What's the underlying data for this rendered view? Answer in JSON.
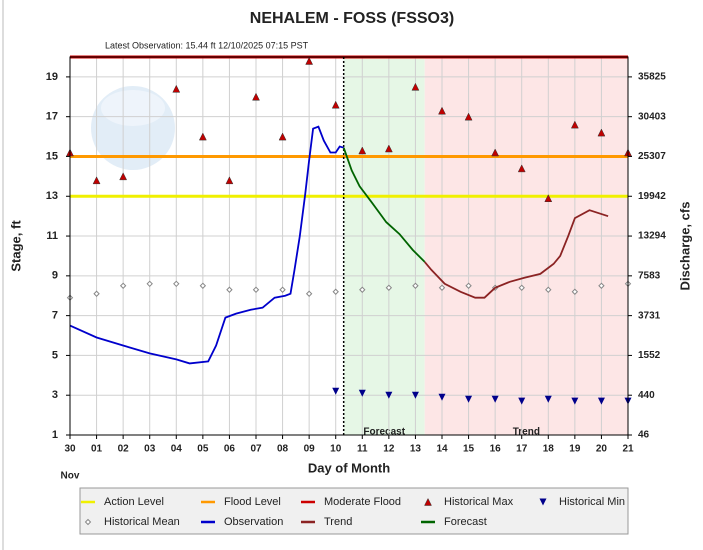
{
  "chart_data": {
    "type": "hydrograph",
    "title": "NEHALEM - FOSS  (FSSO3)",
    "subtitle": "Latest Observation: 15.44 ft 12/10/2025 07:15 PST",
    "x_label": "Day of Month",
    "x_sublabel": "Nov",
    "y_label": "Stage, ft",
    "y2_label": "Discharge, cfs",
    "xlim": [
      0,
      21
    ],
    "xticks": [
      {
        "value": 0,
        "label": "30"
      },
      {
        "value": 1,
        "label": "01"
      },
      {
        "value": 2,
        "label": "02"
      },
      {
        "value": 3,
        "label": "03"
      },
      {
        "value": 4,
        "label": "04"
      },
      {
        "value": 5,
        "label": "05"
      },
      {
        "value": 6,
        "label": "06"
      },
      {
        "value": 7,
        "label": "07"
      },
      {
        "value": 8,
        "label": "08"
      },
      {
        "value": 9,
        "label": "09"
      },
      10,
      11,
      12,
      13,
      14,
      15,
      16,
      17,
      18,
      19,
      20,
      21
    ],
    "ylim": [
      1,
      20
    ],
    "yticks": [
      1,
      3,
      5,
      7,
      9,
      11,
      13,
      15,
      17,
      19
    ],
    "y2ticks": [
      46,
      440,
      1552,
      3731,
      7583,
      13294,
      19942,
      25307,
      30403,
      35825
    ],
    "grid": true,
    "observation_time": 10.3,
    "regions": [
      {
        "label": "Forecast",
        "range": [
          10.3,
          13.35
        ],
        "color": "#e6f7e6"
      },
      {
        "label": "Trend",
        "range": [
          13.35,
          21
        ],
        "color": "#fde6e6"
      }
    ],
    "thresholds": [
      {
        "name": "Action Level",
        "value": 13,
        "color": "#f0f000"
      },
      {
        "name": "Flood Level",
        "value": 15,
        "color": "#ff9900"
      },
      {
        "name": "Moderate Flood",
        "value": 20,
        "color": "#cc0000"
      }
    ],
    "series": [
      {
        "name": "Historical Max",
        "marker": "triangle-up",
        "color": "#c00000",
        "x": [
          0,
          1,
          2,
          4,
          5,
          6,
          7,
          8,
          9,
          10,
          11,
          12,
          13,
          14,
          15,
          16,
          17,
          18,
          19,
          20,
          21
        ],
        "values": [
          15.2,
          13.8,
          14.0,
          18.4,
          16.0,
          13.8,
          18.0,
          16.0,
          19.8,
          17.6,
          15.3,
          15.4,
          18.5,
          17.3,
          17.0,
          15.2,
          14.4,
          12.9,
          16.6,
          16.2,
          15.2
        ]
      },
      {
        "name": "Historical Min",
        "marker": "triangle-down",
        "color": "#00008b",
        "x": [
          10,
          11,
          12,
          13,
          14,
          15,
          16,
          17,
          18,
          19,
          20,
          21
        ],
        "values": [
          3.2,
          3.1,
          3.0,
          3.0,
          2.9,
          2.8,
          2.8,
          2.7,
          2.8,
          2.7,
          2.7,
          2.7
        ]
      },
      {
        "name": "Historical Mean",
        "marker": "diamond",
        "color": "#888888",
        "x": [
          0,
          1,
          2,
          3,
          4,
          5,
          6,
          7,
          8,
          9,
          10,
          11,
          12,
          13,
          14,
          15,
          16,
          17,
          18,
          19,
          20,
          21
        ],
        "values": [
          7.9,
          8.1,
          8.5,
          8.6,
          8.6,
          8.5,
          8.3,
          8.3,
          8.3,
          8.1,
          8.2,
          8.3,
          8.4,
          8.5,
          8.4,
          8.5,
          8.4,
          8.4,
          8.3,
          8.2,
          8.5,
          8.6
        ]
      },
      {
        "name": "Observation",
        "marker": "line",
        "color": "#0000cc",
        "x": [
          0,
          1,
          2,
          3,
          4,
          4.5,
          5.2,
          5.5,
          5.85,
          6.25,
          6.8,
          7.25,
          7.7,
          8.1,
          8.3,
          8.45,
          8.65,
          8.85,
          9.0,
          9.15,
          9.35,
          9.55,
          9.8,
          10.0,
          10.15,
          10.3
        ],
        "values": [
          6.5,
          5.9,
          5.5,
          5.1,
          4.8,
          4.6,
          4.7,
          5.5,
          6.9,
          7.1,
          7.3,
          7.4,
          7.9,
          8.0,
          8.1,
          9.3,
          11.0,
          13.1,
          14.8,
          16.4,
          16.5,
          15.8,
          15.2,
          15.2,
          15.5,
          15.44
        ]
      },
      {
        "name": "Trend",
        "marker": "line",
        "color": "#8b2323",
        "x": [
          13.35,
          13.6,
          14.1,
          14.7,
          15.25,
          15.6,
          16.0,
          16.55,
          17.1,
          17.7,
          18.2,
          18.45,
          18.75,
          19.0,
          19.55,
          20.25
        ],
        "values": [
          9.7,
          9.3,
          8.6,
          8.2,
          7.9,
          7.9,
          8.4,
          8.7,
          8.9,
          9.1,
          9.6,
          10.0,
          11.0,
          11.9,
          12.3,
          12.0
        ]
      },
      {
        "name": "Forecast",
        "marker": "line",
        "color": "#006400",
        "x": [
          10.3,
          10.6,
          10.9,
          11.35,
          11.9,
          12.4,
          12.9,
          13.35
        ],
        "values": [
          15.44,
          14.3,
          13.5,
          12.7,
          11.7,
          11.1,
          10.3,
          9.7
        ]
      }
    ]
  }
}
